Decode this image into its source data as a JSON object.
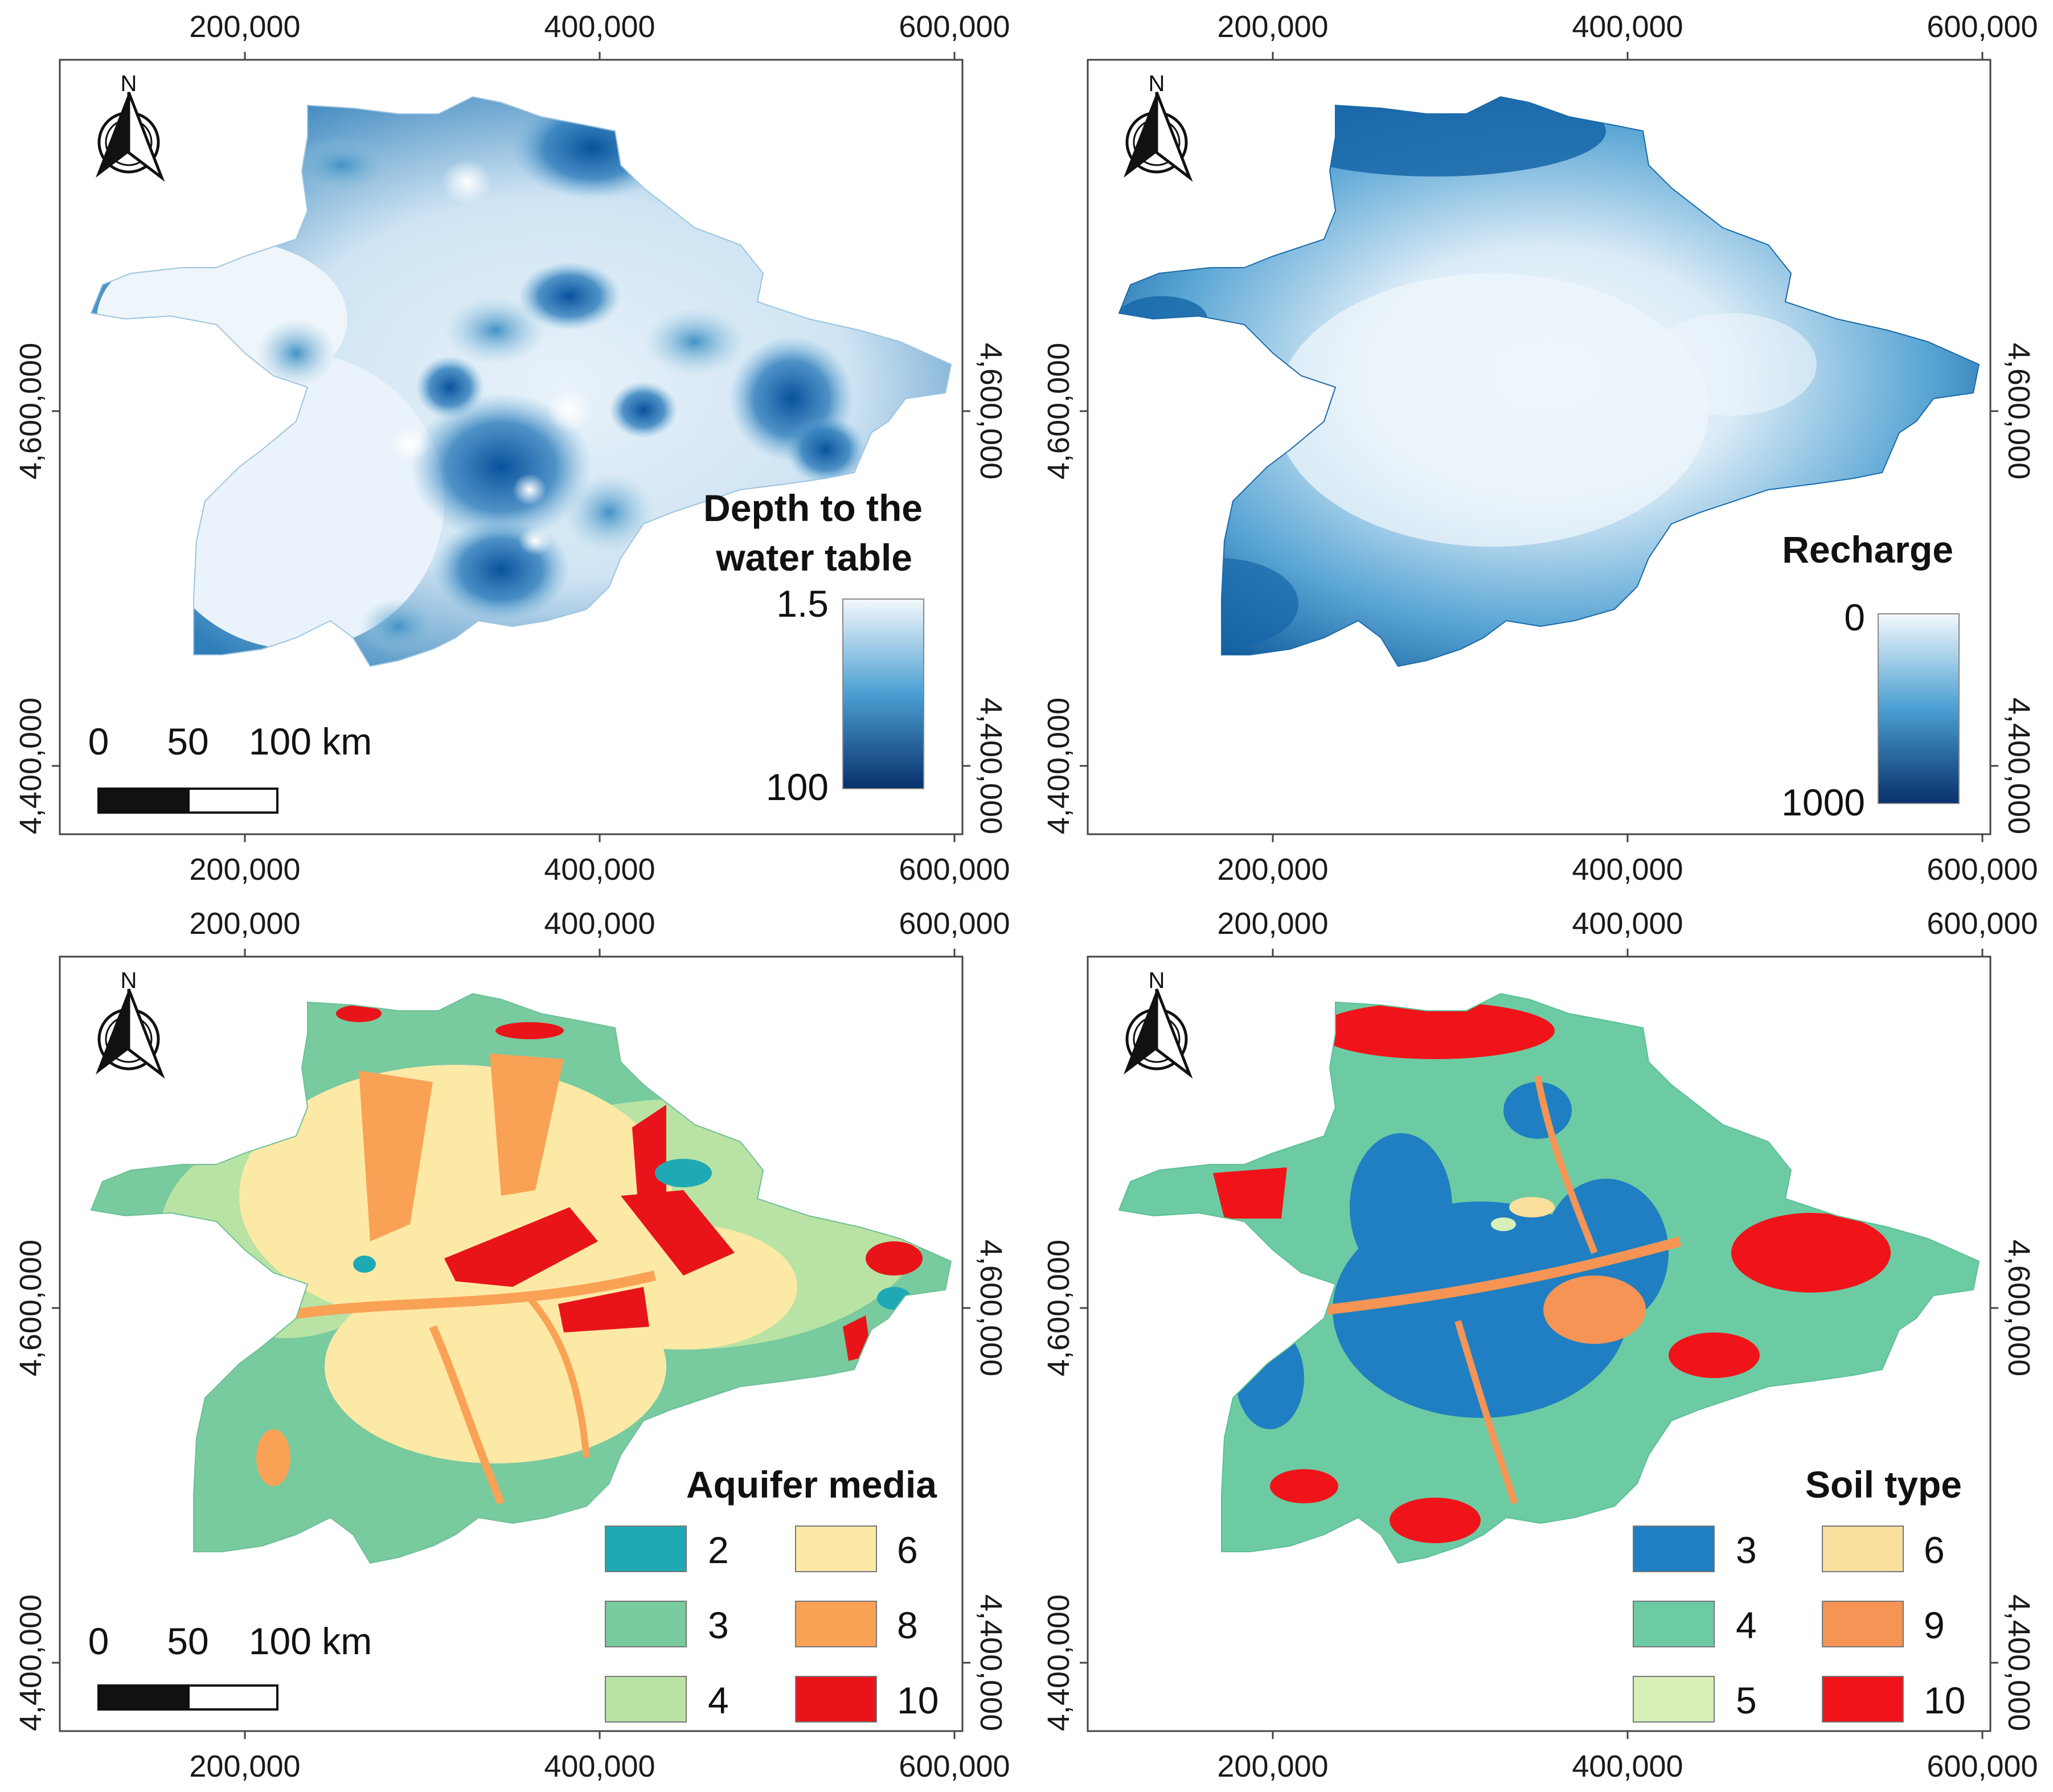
{
  "figure": {
    "panels": [
      {
        "id": "depth",
        "title": "Depth to the water table",
        "legend_type": "gradient",
        "gradient": {
          "top_label": "1.5",
          "bottom_label": "100",
          "top_color": "#f4f8fc",
          "mid_color": "#4a9fd2",
          "bottom_color": "#08306b"
        },
        "show_scale_bar": true
      },
      {
        "id": "recharge",
        "title": "Recharge",
        "legend_type": "gradient",
        "gradient": {
          "top_label": "0",
          "bottom_label": "1000",
          "top_color": "#f4f8fc",
          "mid_color": "#4a9fd2",
          "bottom_color": "#08306b"
        },
        "show_scale_bar": false
      },
      {
        "id": "aquifer",
        "title": "Aquifer media",
        "legend_type": "classes",
        "classes": [
          {
            "label": "2",
            "color": "#1fa9b4"
          },
          {
            "label": "6",
            "color": "#fde9a6"
          },
          {
            "label": "3",
            "color": "#78ca9f"
          },
          {
            "label": "8",
            "color": "#f9a256"
          },
          {
            "label": "4",
            "color": "#b9e3a5"
          },
          {
            "label": "10",
            "color": "#e8141a"
          }
        ],
        "show_scale_bar": true
      },
      {
        "id": "soil",
        "title": "Soil type",
        "legend_type": "classes",
        "classes": [
          {
            "label": "3",
            "color": "#1f7fc2"
          },
          {
            "label": "6",
            "color": "#fbdf9d"
          },
          {
            "label": "4",
            "color": "#6dcba3"
          },
          {
            "label": "9",
            "color": "#f59454"
          },
          {
            "label": "5",
            "color": "#d8f0b8"
          },
          {
            "label": "10",
            "color": "#f0141a"
          }
        ],
        "show_scale_bar": false
      }
    ],
    "axes": {
      "x_ticks": [
        "200,000",
        "400,000",
        "600,000"
      ],
      "y_ticks": [
        "4,600,000",
        "4,400,000"
      ]
    },
    "north_arrow": {
      "label": "N",
      "icon": "north-arrow-icon"
    },
    "scale_bar": {
      "labels": [
        "0",
        "50",
        "100 km"
      ]
    }
  }
}
